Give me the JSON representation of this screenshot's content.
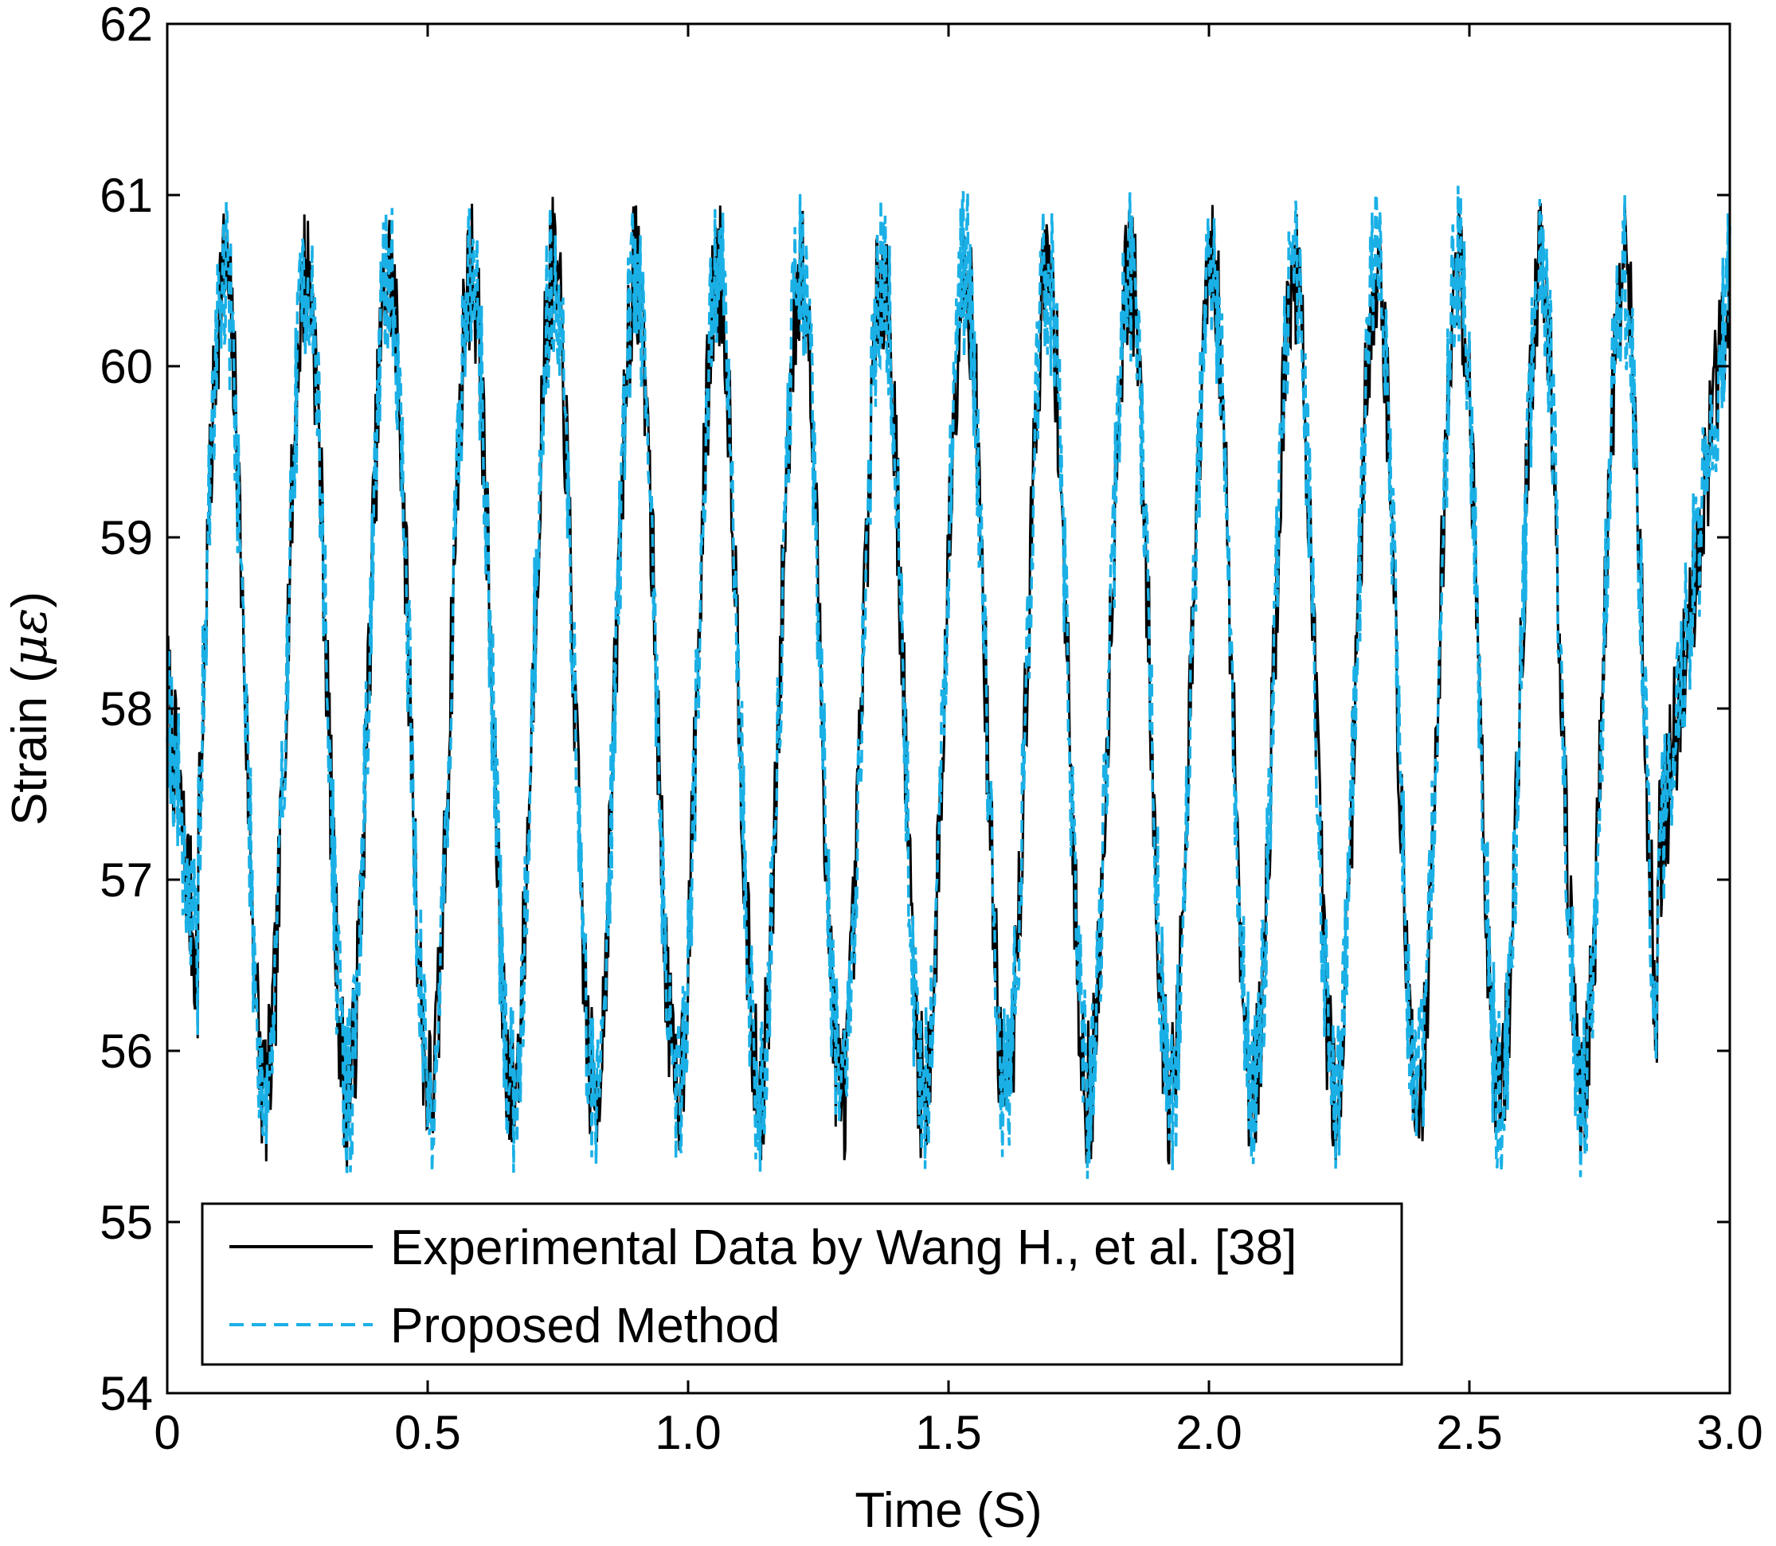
{
  "chart_data": {
    "type": "line",
    "title": "",
    "xlabel": "Time (S)",
    "ylabel": "Strain (",
    "ylabel_symbol": "με",
    "ylabel_close": ")",
    "xlim": [
      0,
      3.0
    ],
    "ylim": [
      54,
      62
    ],
    "xticks": [
      0,
      0.5,
      1.0,
      1.5,
      2.0,
      2.5,
      3.0
    ],
    "xtick_labels": [
      "0",
      "0.5",
      "1.0",
      "1.5",
      "2.0",
      "2.5",
      "3.0"
    ],
    "yticks": [
      54,
      55,
      56,
      57,
      58,
      59,
      60,
      61,
      62
    ],
    "ytick_labels": [
      "54",
      "55",
      "56",
      "57",
      "58",
      "59",
      "60",
      "61",
      "62"
    ],
    "grid": false,
    "legend_position": "bottom-left",
    "signal": {
      "description_free": true,
      "mean": 58.15,
      "amplitude": 2.4,
      "period": 0.158,
      "start_value": 58.0,
      "end_value": 60.5,
      "noise": 0.45
    },
    "series": [
      {
        "name": "Experimental Data by Wang H., et al. [38]",
        "color": "#000000",
        "style": "solid",
        "noise_seed": 7
      },
      {
        "name": "Proposed Method",
        "color": "#1ab0e6",
        "style": "dashed",
        "noise_seed": 19
      }
    ]
  }
}
